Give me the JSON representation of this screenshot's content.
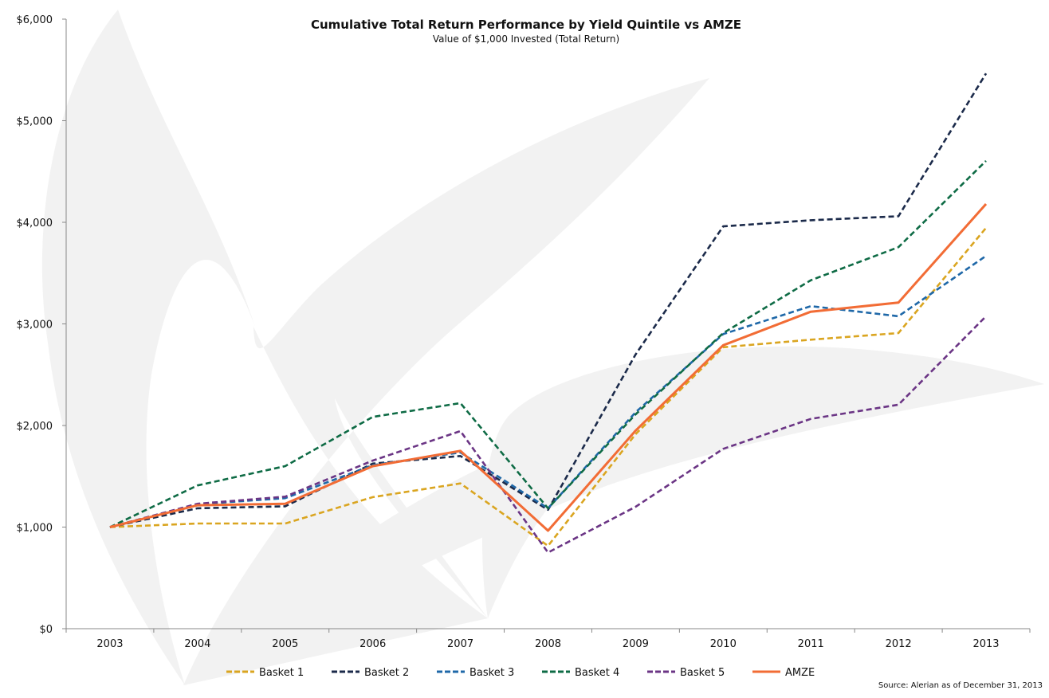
{
  "chart_data": {
    "type": "line",
    "title": "Cumulative Total Return Performance by Yield Quintile vs AMZE",
    "subtitle": "Value of $1,000 Invested (Total Return)",
    "xlabel": "",
    "ylabel": "",
    "x": [
      "2003",
      "2004",
      "2005",
      "2006",
      "2007",
      "2008",
      "2009",
      "2010",
      "2011",
      "2012",
      "2013"
    ],
    "ylim": [
      0,
      6000
    ],
    "yticks": [
      0,
      1000,
      2000,
      3000,
      4000,
      5000,
      6000
    ],
    "ytick_labels": [
      "$0",
      "$1,000",
      "$2,000",
      "$3,000",
      "$4,000",
      "$5,000",
      "$6,000"
    ],
    "grid": false,
    "legend_position": "bottom",
    "series": [
      {
        "name": "Basket 1",
        "color": "#DAA520",
        "style": "dashed",
        "values": [
          1000,
          1035,
          1035,
          1295,
          1430,
          815,
          1915,
          2770,
          2845,
          2910,
          3945
        ]
      },
      {
        "name": "Basket 2",
        "color": "#1B2A4A",
        "style": "dashed",
        "values": [
          1000,
          1185,
          1205,
          1625,
          1700,
          1170,
          2700,
          3960,
          4020,
          4060,
          5465
        ]
      },
      {
        "name": "Basket 3",
        "color": "#1F68A8",
        "style": "dashed",
        "values": [
          1000,
          1225,
          1285,
          1610,
          1735,
          1185,
          2130,
          2900,
          3175,
          3075,
          3670
        ]
      },
      {
        "name": "Basket 4",
        "color": "#0E6B45",
        "style": "dashed",
        "values": [
          1000,
          1410,
          1600,
          2085,
          2220,
          1185,
          2110,
          2910,
          3430,
          3755,
          4605
        ]
      },
      {
        "name": "Basket 5",
        "color": "#6B3585",
        "style": "dashed",
        "values": [
          1000,
          1230,
          1300,
          1655,
          1945,
          750,
          1200,
          1770,
          2065,
          2205,
          3075
        ]
      },
      {
        "name": "AMZE",
        "color": "#F26C35",
        "style": "solid",
        "values": [
          1000,
          1215,
          1230,
          1600,
          1750,
          965,
          1950,
          2790,
          3120,
          3210,
          4180
        ]
      }
    ],
    "source": "Source: Alerian as of December 31, 2013"
  },
  "colors": {
    "axis": "#888888",
    "watermark": "#F2F2F2"
  }
}
